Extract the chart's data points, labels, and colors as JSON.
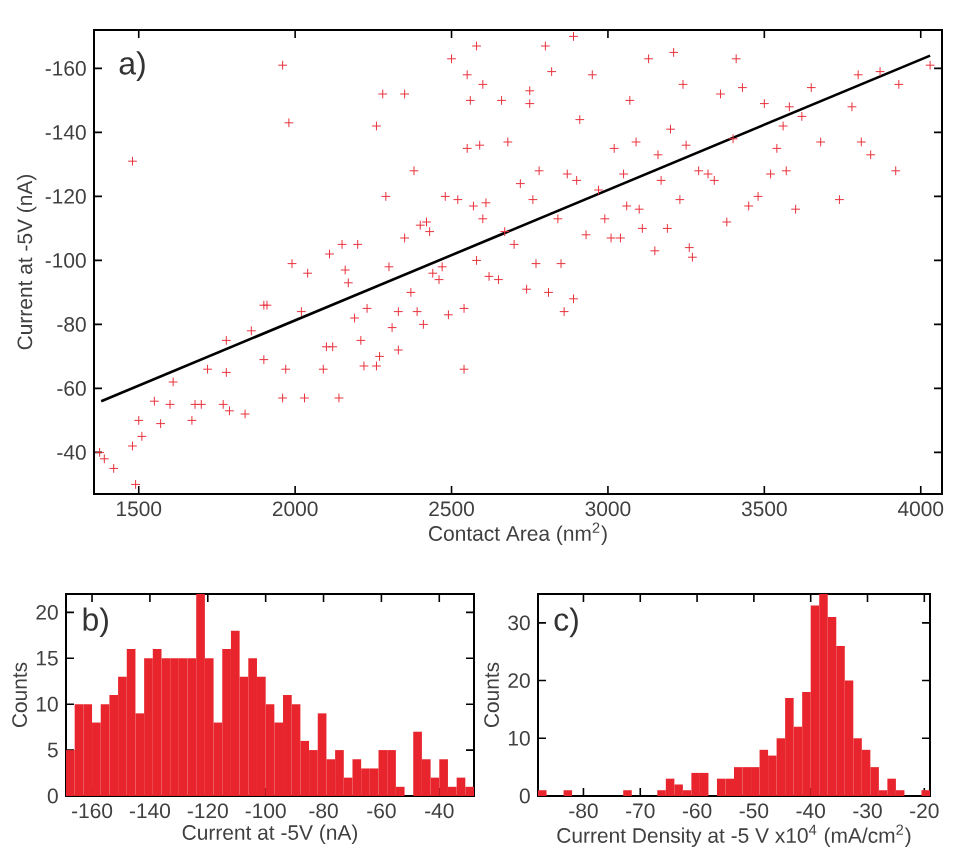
{
  "chart_data": [
    {
      "type": "scatter",
      "xlabel": "Contact Area (nm$^{2}$)",
      "ylabel": "Current at -5V (nA)",
      "annotations": [
        "a)"
      ],
      "xlim": [
        1357,
        4068
      ],
      "ylim": [
        -27,
        -172
      ],
      "xticks": [
        1500,
        2000,
        2500,
        3000,
        3500,
        4000
      ],
      "yticks": [
        -160,
        -140,
        -120,
        -100,
        -80,
        -60,
        -40
      ],
      "series": [
        {
          "type": "scatter",
          "color": "#e8323c",
          "marker": "cross",
          "x": [
            1375,
            1390,
            1420,
            1480,
            1490,
            1500,
            1510,
            1480,
            1550,
            1570,
            1600,
            1610,
            1670,
            1680,
            1700,
            1720,
            1770,
            1780,
            1790,
            1840,
            1860,
            1780,
            1900,
            1910,
            1900,
            1960,
            1970,
            1960,
            1980,
            1990,
            2020,
            2030,
            2040,
            2090,
            2100,
            2120,
            2140,
            2110,
            2150,
            2160,
            2170,
            2200,
            2190,
            2210,
            2220,
            2230,
            2260,
            2270,
            2260,
            2280,
            2290,
            2300,
            2310,
            2330,
            2330,
            2350,
            2350,
            2370,
            2380,
            2390,
            2400,
            2410,
            2420,
            2430,
            2440,
            2460,
            2470,
            2480,
            2490,
            2500,
            2520,
            2540,
            2540,
            2550,
            2550,
            2560,
            2570,
            2580,
            2580,
            2590,
            2600,
            2600,
            2610,
            2620,
            2650,
            2660,
            2670,
            2680,
            2700,
            2720,
            2740,
            2750,
            2750,
            2760,
            2770,
            2780,
            2800,
            2810,
            2820,
            2840,
            2850,
            2860,
            2870,
            2890,
            2890,
            2900,
            2910,
            2930,
            2950,
            2970,
            2990,
            3010,
            3020,
            3040,
            3050,
            3060,
            3070,
            3090,
            3100,
            3110,
            3130,
            3150,
            3160,
            3170,
            3190,
            3200,
            3210,
            3230,
            3240,
            3250,
            3260,
            3270,
            3290,
            3320,
            3340,
            3360,
            3380,
            3400,
            3410,
            3430,
            3450,
            3480,
            3500,
            3520,
            3540,
            3560,
            3570,
            3580,
            3600,
            3620,
            3650,
            3680,
            3740,
            3780,
            3800,
            3810,
            3840,
            3870,
            3920,
            3930,
            4030
          ],
          "values": [
            -40,
            -38,
            -35,
            -42,
            -30,
            -50,
            -45,
            -131,
            -56,
            -49,
            -55,
            -62,
            -50,
            -55,
            -55,
            -66,
            -55,
            -65,
            -53,
            -52,
            -78,
            -75,
            -86,
            -86,
            -69,
            -57,
            -66,
            -161,
            -143,
            -99,
            -84,
            -57,
            -96,
            -66,
            -73,
            -73,
            -57,
            -102,
            -105,
            -97,
            -93,
            -105,
            -82,
            -75,
            -67,
            -85,
            -67,
            -70,
            -142,
            -152,
            -120,
            -98,
            -79,
            -72,
            -84,
            -107,
            -152,
            -90,
            -128,
            -84,
            -111,
            -80,
            -112,
            -109,
            -96,
            -94,
            -98,
            -120,
            -83,
            -163,
            -119,
            -66,
            -85,
            -135,
            -158,
            -150,
            -117,
            -167,
            -100,
            -136,
            -155,
            -113,
            -118,
            -95,
            -94,
            -150,
            -109,
            -137,
            -105,
            -124,
            -91,
            -153,
            -149,
            -119,
            -99,
            -128,
            -167,
            -90,
            -159,
            -113,
            -99,
            -84,
            -127,
            -88,
            -170,
            -125,
            -144,
            -108,
            -158,
            -122,
            -113,
            -107,
            -135,
            -107,
            -127,
            -117,
            -150,
            -137,
            -116,
            -110,
            -163,
            -103,
            -133,
            -125,
            -110,
            -141,
            -165,
            -119,
            -155,
            -136,
            -104,
            -101,
            -128,
            -127,
            -125,
            -152,
            -112,
            -138,
            -163,
            -154,
            -117,
            -120,
            -149,
            -127,
            -135,
            -142,
            -128,
            -148,
            -116,
            -145,
            -154,
            -137,
            -119,
            -148,
            -158,
            -137,
            -133,
            -159,
            -128,
            -155,
            -161
          ]
        },
        {
          "type": "line",
          "color": "#000000",
          "marker": "none",
          "x": [
            1380,
            4030
          ],
          "values": [
            -56,
            -164
          ]
        }
      ]
    },
    {
      "type": "histogram",
      "xlabel": "Current at -5V (nA)",
      "ylabel": "Counts",
      "annotations": [
        "b)"
      ],
      "color": "#e8252d",
      "xlim": [
        -169,
        -28
      ],
      "ylim": [
        0,
        22
      ],
      "xticks": [
        -160,
        -140,
        -120,
        -100,
        -80,
        -60,
        -40
      ],
      "yticks": [
        0,
        5,
        10,
        15,
        20
      ],
      "bins": [
        -169,
        -166,
        -163,
        -160,
        -157,
        -154,
        -151,
        -148,
        -145,
        -142,
        -139,
        -136,
        -133,
        -130,
        -127,
        -124,
        -121,
        -118,
        -115,
        -112,
        -109,
        -106,
        -103,
        -100,
        -97,
        -94,
        -91,
        -88,
        -85,
        -82,
        -79,
        -76,
        -73,
        -70,
        -67,
        -64,
        -61,
        -58,
        -55,
        -52,
        -49,
        -46,
        -43,
        -40,
        -37,
        -34,
        -31,
        -28
      ],
      "values": [
        5,
        10,
        10,
        8,
        10,
        11,
        13,
        16,
        9,
        15,
        16,
        15,
        15,
        15,
        15,
        22,
        15,
        8,
        16,
        18,
        13,
        15,
        13,
        10,
        8,
        11,
        10,
        6,
        5,
        9,
        4,
        5,
        2,
        4,
        3,
        3,
        5,
        5,
        1,
        0,
        7,
        4,
        2,
        4,
        1,
        2,
        1
      ]
    },
    {
      "type": "histogram",
      "xlabel": "Current Density at -5 V  x10$^{4}$ (mA/cm$^{2}$)",
      "ylabel": "Counts",
      "annotations": [
        "c)"
      ],
      "color": "#e8252d",
      "xlim": [
        -88,
        -19
      ],
      "ylim": [
        0,
        35
      ],
      "xticks": [
        -80,
        -70,
        -60,
        -50,
        -40,
        -30,
        -20
      ],
      "yticks": [
        0,
        10,
        20,
        30
      ],
      "bins": [
        -88,
        -86.5,
        -85,
        -83.5,
        -82,
        -80.5,
        -79,
        -77.5,
        -76,
        -74.5,
        -73,
        -71.5,
        -70,
        -68.5,
        -67,
        -65.5,
        -64,
        -62.5,
        -61,
        -59.5,
        -58,
        -56.5,
        -55,
        -53.5,
        -52,
        -50.5,
        -49,
        -47.5,
        -46,
        -44.5,
        -43,
        -41.5,
        -40,
        -38.5,
        -37,
        -35.5,
        -34,
        -32.5,
        -31,
        -29.5,
        -28,
        -26.5,
        -25,
        -23.5,
        -22,
        -20.5,
        -19
      ],
      "values": [
        1,
        0,
        0,
        1,
        0,
        0,
        0,
        0,
        0,
        0,
        1,
        0,
        0,
        0,
        1,
        3,
        2,
        1,
        4,
        4,
        0,
        3,
        3,
        5,
        5,
        5,
        8,
        7,
        10,
        17,
        12,
        18,
        33,
        35,
        31,
        26,
        20,
        10,
        8,
        5,
        1,
        3,
        1,
        0,
        0,
        1
      ]
    }
  ]
}
